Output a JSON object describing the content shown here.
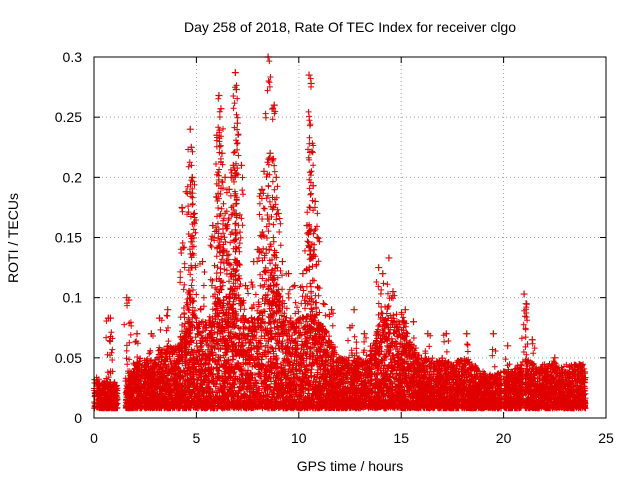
{
  "chart_data": {
    "type": "scatter",
    "title": "Day 258 of 2018, Rate Of TEC Index for receiver clgo",
    "xlabel": "GPS time / hours",
    "ylabel": "ROTI / TECUs",
    "xlim": [
      0,
      25
    ],
    "ylim": [
      0,
      0.3
    ],
    "xticks": [
      0,
      5,
      10,
      15,
      20,
      25
    ],
    "xtick_labels": [
      "0",
      "5",
      "10",
      "15",
      "20",
      "25"
    ],
    "yticks": [
      0,
      0.05,
      0.1,
      0.15,
      0.2,
      0.25,
      0.3
    ],
    "ytick_labels": [
      "0",
      "0.05",
      "0.1",
      "0.15",
      "0.2",
      "0.25",
      "0.3"
    ],
    "grid": true,
    "marker": "+",
    "color": "#e00000",
    "band_x": [
      0,
      0.5,
      1,
      1.5,
      2,
      2.5,
      3,
      3.5,
      4,
      4.5,
      5,
      5.5,
      6,
      6.5,
      7,
      7.5,
      8,
      8.5,
      9,
      9.5,
      10,
      10.5,
      11,
      11.5,
      12,
      12.5,
      13,
      13.5,
      14,
      14.5,
      15,
      15.5,
      16,
      16.5,
      17,
      17.5,
      18,
      18.5,
      19,
      19.5,
      20,
      20.5,
      21,
      21.5,
      22,
      22.5,
      23,
      23.5,
      24
    ],
    "band_upper": [
      0.035,
      0.03,
      0.03,
      0.02,
      0.05,
      0.05,
      0.05,
      0.06,
      0.06,
      0.07,
      0.08,
      0.08,
      0.1,
      0.09,
      0.1,
      0.08,
      0.09,
      0.09,
      0.1,
      0.08,
      0.09,
      0.08,
      0.08,
      0.07,
      0.05,
      0.05,
      0.05,
      0.06,
      0.08,
      0.085,
      0.09,
      0.06,
      0.05,
      0.05,
      0.05,
      0.045,
      0.05,
      0.045,
      0.04,
      0.035,
      0.04,
      0.04,
      0.05,
      0.045,
      0.045,
      0.045,
      0.045,
      0.045,
      0.045
    ],
    "spikes": [
      {
        "x": 0.7,
        "y": 0.083
      },
      {
        "x": 0.8,
        "y": 0.083
      },
      {
        "x": 1.6,
        "y": 0.1
      },
      {
        "x": 1.7,
        "y": 0.098
      },
      {
        "x": 2.1,
        "y": 0.07
      },
      {
        "x": 2.8,
        "y": 0.07
      },
      {
        "x": 3.2,
        "y": 0.083
      },
      {
        "x": 3.6,
        "y": 0.09
      },
      {
        "x": 4.3,
        "y": 0.175
      },
      {
        "x": 4.5,
        "y": 0.188
      },
      {
        "x": 4.7,
        "y": 0.24
      },
      {
        "x": 4.75,
        "y": 0.225
      },
      {
        "x": 4.8,
        "y": 0.2
      },
      {
        "x": 4.9,
        "y": 0.17
      },
      {
        "x": 5.3,
        "y": 0.13
      },
      {
        "x": 5.8,
        "y": 0.16
      },
      {
        "x": 6.0,
        "y": 0.235
      },
      {
        "x": 6.1,
        "y": 0.268
      },
      {
        "x": 6.2,
        "y": 0.257
      },
      {
        "x": 6.25,
        "y": 0.22
      },
      {
        "x": 6.4,
        "y": 0.2
      },
      {
        "x": 6.5,
        "y": 0.135
      },
      {
        "x": 6.6,
        "y": 0.19
      },
      {
        "x": 6.7,
        "y": 0.2
      },
      {
        "x": 6.8,
        "y": 0.21
      },
      {
        "x": 6.9,
        "y": 0.287
      },
      {
        "x": 6.95,
        "y": 0.273
      },
      {
        "x": 7.0,
        "y": 0.245
      },
      {
        "x": 7.2,
        "y": 0.21
      },
      {
        "x": 7.4,
        "y": 0.11
      },
      {
        "x": 7.8,
        "y": 0.13
      },
      {
        "x": 8.0,
        "y": 0.14
      },
      {
        "x": 8.2,
        "y": 0.19
      },
      {
        "x": 8.3,
        "y": 0.205
      },
      {
        "x": 8.5,
        "y": 0.3
      },
      {
        "x": 8.6,
        "y": 0.22
      },
      {
        "x": 8.7,
        "y": 0.215
      },
      {
        "x": 8.8,
        "y": 0.26
      },
      {
        "x": 8.9,
        "y": 0.2
      },
      {
        "x": 9.0,
        "y": 0.17
      },
      {
        "x": 9.2,
        "y": 0.13
      },
      {
        "x": 9.5,
        "y": 0.12
      },
      {
        "x": 9.8,
        "y": 0.11
      },
      {
        "x": 10.2,
        "y": 0.12
      },
      {
        "x": 10.4,
        "y": 0.16
      },
      {
        "x": 10.5,
        "y": 0.285
      },
      {
        "x": 10.6,
        "y": 0.278
      },
      {
        "x": 10.7,
        "y": 0.193
      },
      {
        "x": 10.8,
        "y": 0.18
      },
      {
        "x": 10.9,
        "y": 0.15
      },
      {
        "x": 11.2,
        "y": 0.095
      },
      {
        "x": 11.6,
        "y": 0.09
      },
      {
        "x": 12.5,
        "y": 0.075
      },
      {
        "x": 12.7,
        "y": 0.09
      },
      {
        "x": 13.2,
        "y": 0.07
      },
      {
        "x": 13.9,
        "y": 0.125
      },
      {
        "x": 14.1,
        "y": 0.12
      },
      {
        "x": 14.4,
        "y": 0.133
      },
      {
        "x": 14.6,
        "y": 0.105
      },
      {
        "x": 15.2,
        "y": 0.09
      },
      {
        "x": 15.6,
        "y": 0.08
      },
      {
        "x": 16.3,
        "y": 0.07
      },
      {
        "x": 17.2,
        "y": 0.07
      },
      {
        "x": 18.2,
        "y": 0.07
      },
      {
        "x": 19.5,
        "y": 0.07
      },
      {
        "x": 20.2,
        "y": 0.06
      },
      {
        "x": 21.0,
        "y": 0.103
      },
      {
        "x": 21.1,
        "y": 0.095
      },
      {
        "x": 21.4,
        "y": 0.065
      },
      {
        "x": 22.5,
        "y": 0.05
      }
    ]
  }
}
